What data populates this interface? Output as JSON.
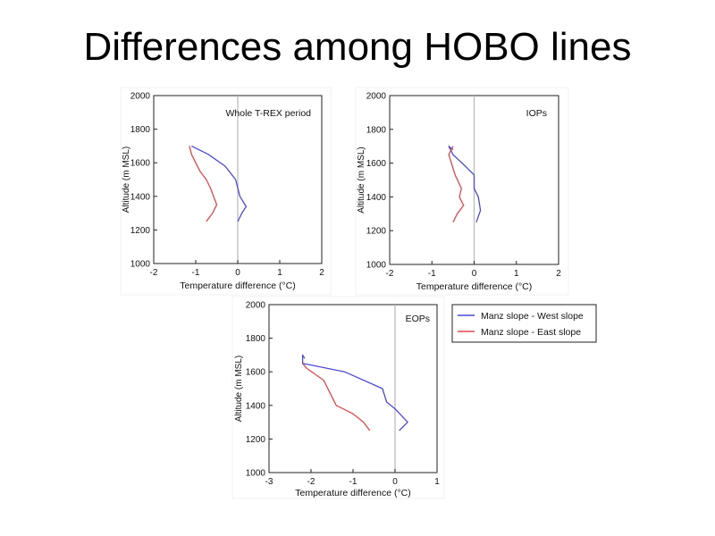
{
  "slide": {
    "title": "Differences among HOBO lines"
  },
  "legend": {
    "entries": [
      {
        "label": "Manz slope - West slope",
        "color": "#4a4ad6"
      },
      {
        "label": "Manz slope - East slope",
        "color": "#e04848"
      }
    ]
  },
  "chart_data": [
    {
      "type": "line",
      "title": "Whole T-REX period",
      "xlabel": "Temperature difference (°C)",
      "ylabel": "Altitude (m MSL)",
      "xlim": [
        -2,
        2
      ],
      "ylim": [
        1000,
        2000
      ],
      "xticks": [
        -2,
        -1,
        0,
        1,
        2
      ],
      "yticks": [
        1000,
        1200,
        1400,
        1600,
        1800,
        2000
      ],
      "vline_at": 0,
      "series": [
        {
          "name": "Manz slope - West slope",
          "color": "#4a4ad6",
          "x": [
            0.0,
            0.1,
            0.2,
            0.05,
            -0.05,
            -0.3,
            -0.7,
            -1.1
          ],
          "y": [
            1250,
            1300,
            1340,
            1400,
            1500,
            1580,
            1650,
            1700
          ]
        },
        {
          "name": "Manz slope - East slope",
          "color": "#e04848",
          "x": [
            -0.75,
            -0.6,
            -0.5,
            -0.65,
            -0.75,
            -0.9,
            -1.1,
            -1.15
          ],
          "y": [
            1250,
            1300,
            1350,
            1450,
            1500,
            1550,
            1650,
            1700
          ]
        }
      ]
    },
    {
      "type": "line",
      "title": "IOPs",
      "xlabel": "Temperature difference (°C)",
      "ylabel": "Altitude (m MSL)",
      "xlim": [
        -2,
        2
      ],
      "ylim": [
        1000,
        2000
      ],
      "xticks": [
        -2,
        -1,
        0,
        1,
        2
      ],
      "yticks": [
        1000,
        1200,
        1400,
        1600,
        1800,
        2000
      ],
      "vline_at": 0,
      "series": [
        {
          "name": "Manz slope - West slope",
          "color": "#4a4ad6",
          "x": [
            0.05,
            0.15,
            0.1,
            0.0,
            0.0,
            -0.2,
            -0.5,
            -0.6,
            -0.5
          ],
          "y": [
            1250,
            1320,
            1400,
            1450,
            1530,
            1580,
            1650,
            1700,
            1680
          ]
        },
        {
          "name": "Manz slope - East slope",
          "color": "#e04848",
          "x": [
            -0.5,
            -0.4,
            -0.25,
            -0.35,
            -0.3,
            -0.45,
            -0.6,
            -0.5
          ],
          "y": [
            1250,
            1300,
            1350,
            1400,
            1450,
            1530,
            1650,
            1700
          ]
        }
      ]
    },
    {
      "type": "line",
      "title": "EOPs",
      "xlabel": "Temperature difference (°C)",
      "ylabel": "Altitude (m MSL)",
      "xlim": [
        -3,
        1
      ],
      "ylim": [
        1000,
        2000
      ],
      "xticks": [
        -3,
        -2,
        -1,
        0,
        1
      ],
      "yticks": [
        1000,
        1200,
        1400,
        1600,
        1800,
        2000
      ],
      "vline_at": 0,
      "series": [
        {
          "name": "Manz slope - West slope",
          "color": "#4a4ad6",
          "x": [
            0.1,
            0.3,
            0.0,
            -0.2,
            -0.3,
            -1.2,
            -2.2,
            -2.2,
            -2.15
          ],
          "y": [
            1250,
            1300,
            1380,
            1420,
            1500,
            1600,
            1650,
            1700,
            1680
          ]
        },
        {
          "name": "Manz slope - East slope",
          "color": "#e04848",
          "x": [
            -0.6,
            -0.75,
            -1.0,
            -1.4,
            -1.5,
            -1.7,
            -2.1,
            -2.2
          ],
          "y": [
            1250,
            1300,
            1350,
            1400,
            1450,
            1550,
            1620,
            1650
          ]
        }
      ]
    }
  ]
}
